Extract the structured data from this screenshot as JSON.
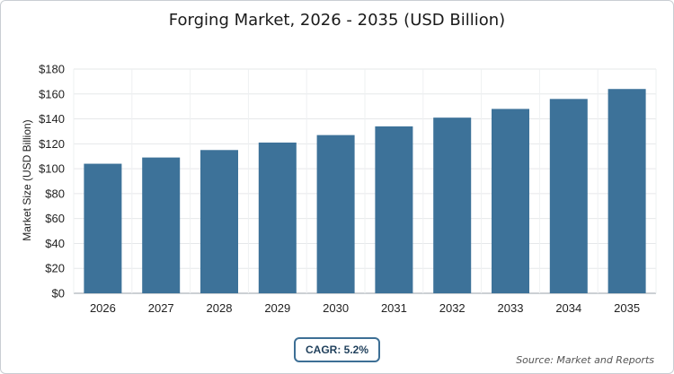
{
  "chart_data": {
    "type": "bar",
    "title": "Forging Market, 2026 - 2035 (USD Billion)",
    "xlabel": "",
    "ylabel": "Market Size (USD Billion)",
    "categories": [
      "2026",
      "2027",
      "2028",
      "2029",
      "2030",
      "2031",
      "2032",
      "2033",
      "2034",
      "2035"
    ],
    "values": [
      104,
      109,
      115,
      121,
      127,
      134,
      141,
      148,
      156,
      164
    ],
    "ylim": [
      0,
      180
    ],
    "yticks": [
      "$0",
      "$20",
      "$40",
      "$60",
      "$80",
      "$100",
      "$120",
      "$140",
      "$160",
      "$180"
    ],
    "grid": true,
    "bar_color": "#3d7299"
  },
  "cagr_label": "CAGR: 5.2%",
  "source": "Source: Market and Reports"
}
